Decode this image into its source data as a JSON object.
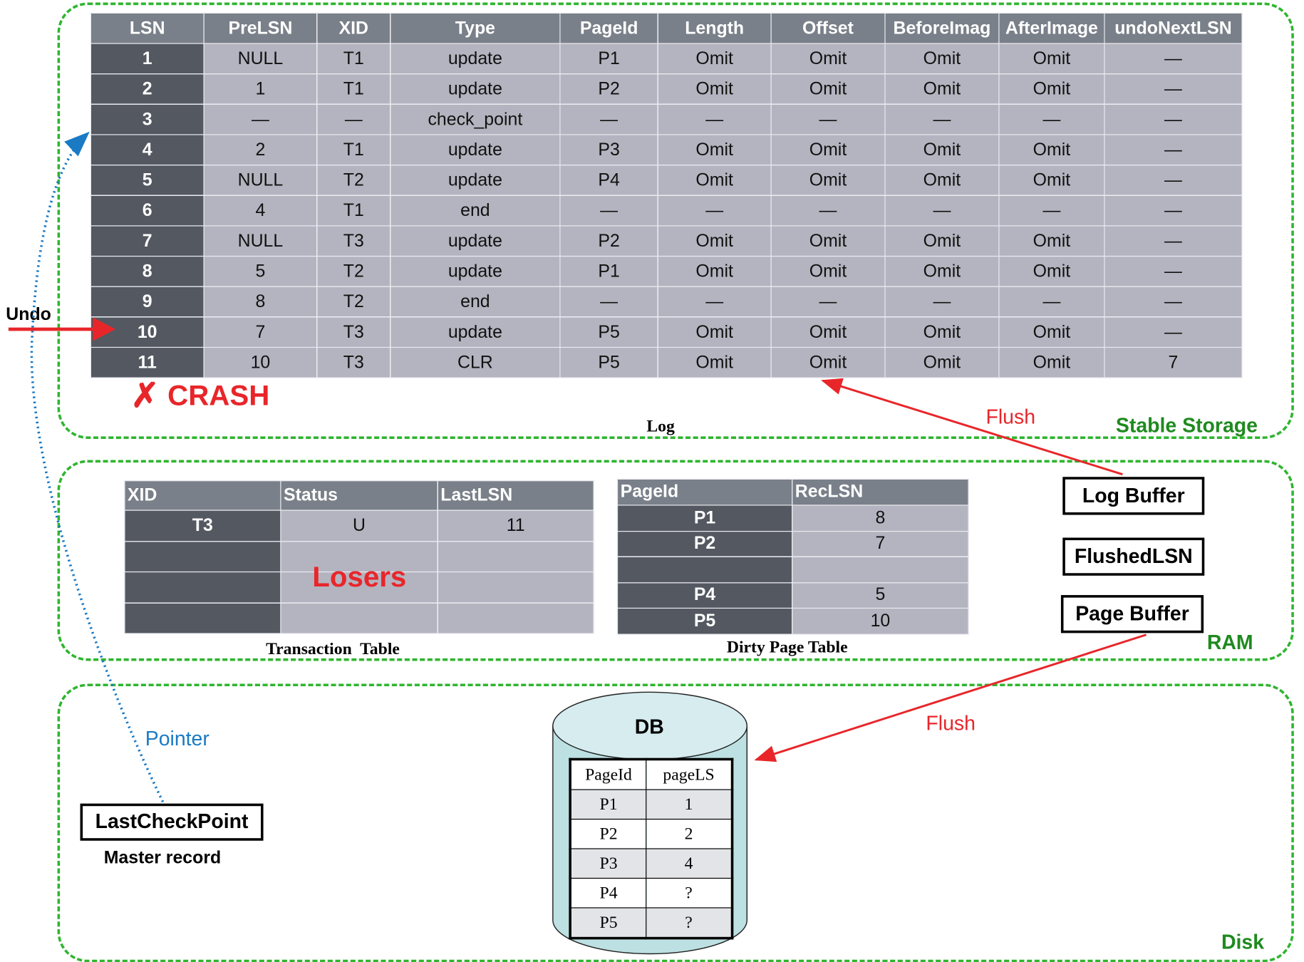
{
  "colors": {
    "region_border": "#2fb52f",
    "region_label": "#1f8a1f",
    "arrow_red": "#e8262a",
    "pointer_blue": "#1a7ac4",
    "header_bg": "#7a8089",
    "key_bg": "#535861",
    "cell_bg": "#b4b4c0",
    "db_fill": "#bde0e2"
  },
  "stable_storage": {
    "label": "Stable Storage",
    "log": {
      "caption": "Log",
      "columns": [
        "LSN",
        "PreLSN",
        "XID",
        "Type",
        "PageId",
        "Length",
        "Offset",
        "BeforeImag",
        "AfterImage",
        "undoNextLSN"
      ],
      "rows": [
        [
          "1",
          "NULL",
          "T1",
          "update",
          "P1",
          "Omit",
          "Omit",
          "Omit",
          "Omit",
          "—"
        ],
        [
          "2",
          "1",
          "T1",
          "update",
          "P2",
          "Omit",
          "Omit",
          "Omit",
          "Omit",
          "—"
        ],
        [
          "3",
          "—",
          "—",
          "check_point",
          "—",
          "—",
          "—",
          "—",
          "—",
          "—"
        ],
        [
          "4",
          "2",
          "T1",
          "update",
          "P3",
          "Omit",
          "Omit",
          "Omit",
          "Omit",
          "—"
        ],
        [
          "5",
          "NULL",
          "T2",
          "update",
          "P4",
          "Omit",
          "Omit",
          "Omit",
          "Omit",
          "—"
        ],
        [
          "6",
          "4",
          "T1",
          "end",
          "—",
          "—",
          "—",
          "—",
          "—",
          "—"
        ],
        [
          "7",
          "NULL",
          "T3",
          "update",
          "P2",
          "Omit",
          "Omit",
          "Omit",
          "Omit",
          "—"
        ],
        [
          "8",
          "5",
          "T2",
          "update",
          "P1",
          "Omit",
          "Omit",
          "Omit",
          "Omit",
          "—"
        ],
        [
          "9",
          "8",
          "T2",
          "end",
          "—",
          "—",
          "—",
          "—",
          "—",
          "—"
        ],
        [
          "10",
          "7",
          "T3",
          "update",
          "P5",
          "Omit",
          "Omit",
          "Omit",
          "Omit",
          "—"
        ],
        [
          "11",
          "10",
          "T3",
          "CLR",
          "P5",
          "Omit",
          "Omit",
          "Omit",
          "Omit",
          "7"
        ]
      ]
    },
    "crash_label": "CRASH",
    "undo_label": "Undo",
    "flush_label": "Flush"
  },
  "ram": {
    "label": "RAM",
    "transaction_table": {
      "caption": "Transaction  Table",
      "columns": [
        "XID",
        "Status",
        "LastLSN"
      ],
      "rows": [
        [
          "T3",
          "U",
          "11"
        ],
        [
          "",
          "",
          ""
        ],
        [
          "",
          "",
          ""
        ],
        [
          "",
          "",
          ""
        ]
      ],
      "overlay": "Losers"
    },
    "dirty_page_table": {
      "caption": "Dirty Page Table",
      "columns": [
        "PageId",
        "RecLSN"
      ],
      "rows": [
        [
          "P1",
          "8"
        ],
        [
          "P2",
          "7"
        ],
        [
          "",
          ""
        ],
        [
          "P4",
          "5"
        ],
        [
          "P5",
          "10"
        ]
      ]
    },
    "log_buffer": "Log Buffer",
    "flushed_lsn": "FlushedLSN",
    "page_buffer": "Page Buffer",
    "flush_label": "Flush"
  },
  "disk": {
    "label": "Disk",
    "db": {
      "title": "DB",
      "columns": [
        "PageId",
        "pageLS"
      ],
      "rows": [
        [
          "P1",
          "1"
        ],
        [
          "P2",
          "2"
        ],
        [
          "P3",
          "4"
        ],
        [
          "P4",
          "?"
        ],
        [
          "P5",
          "?"
        ]
      ]
    },
    "last_checkpoint": "LastCheckPoint",
    "master_record": "Master record",
    "pointer_label": "Pointer"
  }
}
